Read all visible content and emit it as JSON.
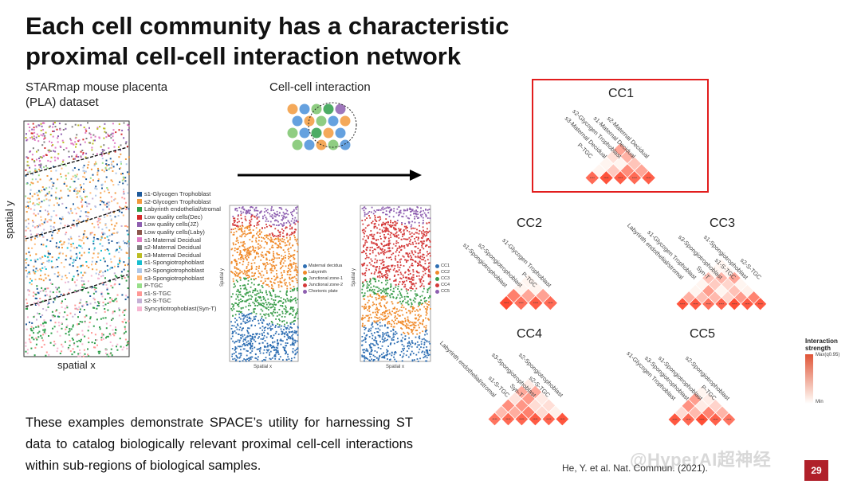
{
  "title_line1": "Each cell community has a characteristic",
  "title_line2": "proximal cell-cell interaction network",
  "dataset_label_line1": "STARmap mouse placenta",
  "dataset_label_line2": "(PLA) dataset",
  "interaction_label": "Cell-cell interaction",
  "spatial_y": "spatial y",
  "spatial_x": "spatial x",
  "small_spatial_y": "Spatial y",
  "small_spatial_x": "Spatial x",
  "cell_types": [
    {
      "label": "s1-Glycogen Trophoblast",
      "color": "#1f5a9a"
    },
    {
      "label": "s2-Glycogen Trophoblast",
      "color": "#f29a3d"
    },
    {
      "label": "Labyrinth endothelial/stromal",
      "color": "#2e9e4a"
    },
    {
      "label": "Low quality cells(Dec)",
      "color": "#d42a2a"
    },
    {
      "label": "Low quality cells(JZ)",
      "color": "#8e5fb0"
    },
    {
      "label": "Low quality cells(Laby)",
      "color": "#8c564b"
    },
    {
      "label": "s1-Maternal Decidual",
      "color": "#e07bc4"
    },
    {
      "label": "s2-Maternal Decidual",
      "color": "#7f7f7f"
    },
    {
      "label": "s3-Maternal Decidual",
      "color": "#bcbd22"
    },
    {
      "label": "s1-Spongiotrophoblast",
      "color": "#17becf"
    },
    {
      "label": "s2-Spongiotrophoblast",
      "color": "#aec7e8"
    },
    {
      "label": "s3-Spongiotrophoblast",
      "color": "#ffbb78"
    },
    {
      "label": "P-TGC",
      "color": "#98df8a"
    },
    {
      "label": "s1-S-TGC",
      "color": "#ff9896"
    },
    {
      "label": "s2-S-TGC",
      "color": "#c5b0d5"
    },
    {
      "label": "Syncytiotrophoblast(Syn-T)",
      "color": "#f7b6d2"
    }
  ],
  "zone_legend": [
    {
      "label": "Maternal decidua",
      "color": "#2f6fb3"
    },
    {
      "label": "Labyrinth",
      "color": "#f08a2a"
    },
    {
      "label": "Junctional zone-1",
      "color": "#3a9d4a"
    },
    {
      "label": "Junctional zone-2",
      "color": "#d43a3a"
    },
    {
      "label": "Chorionic plate",
      "color": "#8e5fb0"
    }
  ],
  "cc_legend": [
    {
      "label": "CC1",
      "color": "#2f6fb3"
    },
    {
      "label": "CC2",
      "color": "#f08a2a"
    },
    {
      "label": "CC3",
      "color": "#3a9d4a"
    },
    {
      "label": "CC4",
      "color": "#d43a3a"
    },
    {
      "label": "CC5",
      "color": "#8e5fb0"
    }
  ],
  "networks": [
    {
      "name": "CC1",
      "labels": [
        "P-TGC",
        "s3-Maternal Decidual",
        "s2-Glycogen Trophoblast",
        "s1-Maternal Decidual",
        "s2-Maternal Decidual"
      ]
    },
    {
      "name": "CC2",
      "labels": [
        "s1-Spongiotrophoblast",
        "s2-Spongiotrophoblast",
        "P-TGC",
        "s1-Glycogen Trophoblast"
      ]
    },
    {
      "name": "CC3",
      "labels": [
        "Labyrinth endothelial/stromal",
        "s1-Glycogen Trophoblast",
        "Syn-T",
        "s3-Spongiotrophoblast",
        "s1-S-TGC",
        "s1-Spongiotrophoblast",
        "s2-S-TGC"
      ]
    },
    {
      "name": "CC4",
      "labels": [
        "Labyrinth endothelial/stromal",
        "s1-S-TGC",
        "Syn-T",
        "s3-Spongiotrophoblast",
        "s2-S-TGC",
        "s2-Spongiotrophoblast"
      ]
    },
    {
      "name": "CC5",
      "labels": [
        "s1-Glycogen Trophoblast",
        "s3-Spongiotrophoblast",
        "s1-Spongiotrophoblast",
        "P-TGC",
        "s2-Spongiotrophoblast"
      ]
    }
  ],
  "colorbar_title": "Interaction strength",
  "colorbar_max": "Max(q0.95)",
  "colorbar_min": "Min",
  "bottom_text": "These examples demonstrate SPACE’s utility for harnessing ST data to catalog biologically relevant proximal cell-cell interactions within sub-regions of biological samples.",
  "reference": "He, Y. et al. Nat. Commun. (2021).",
  "page_number": "29",
  "watermark": "@HyperAI超神经"
}
